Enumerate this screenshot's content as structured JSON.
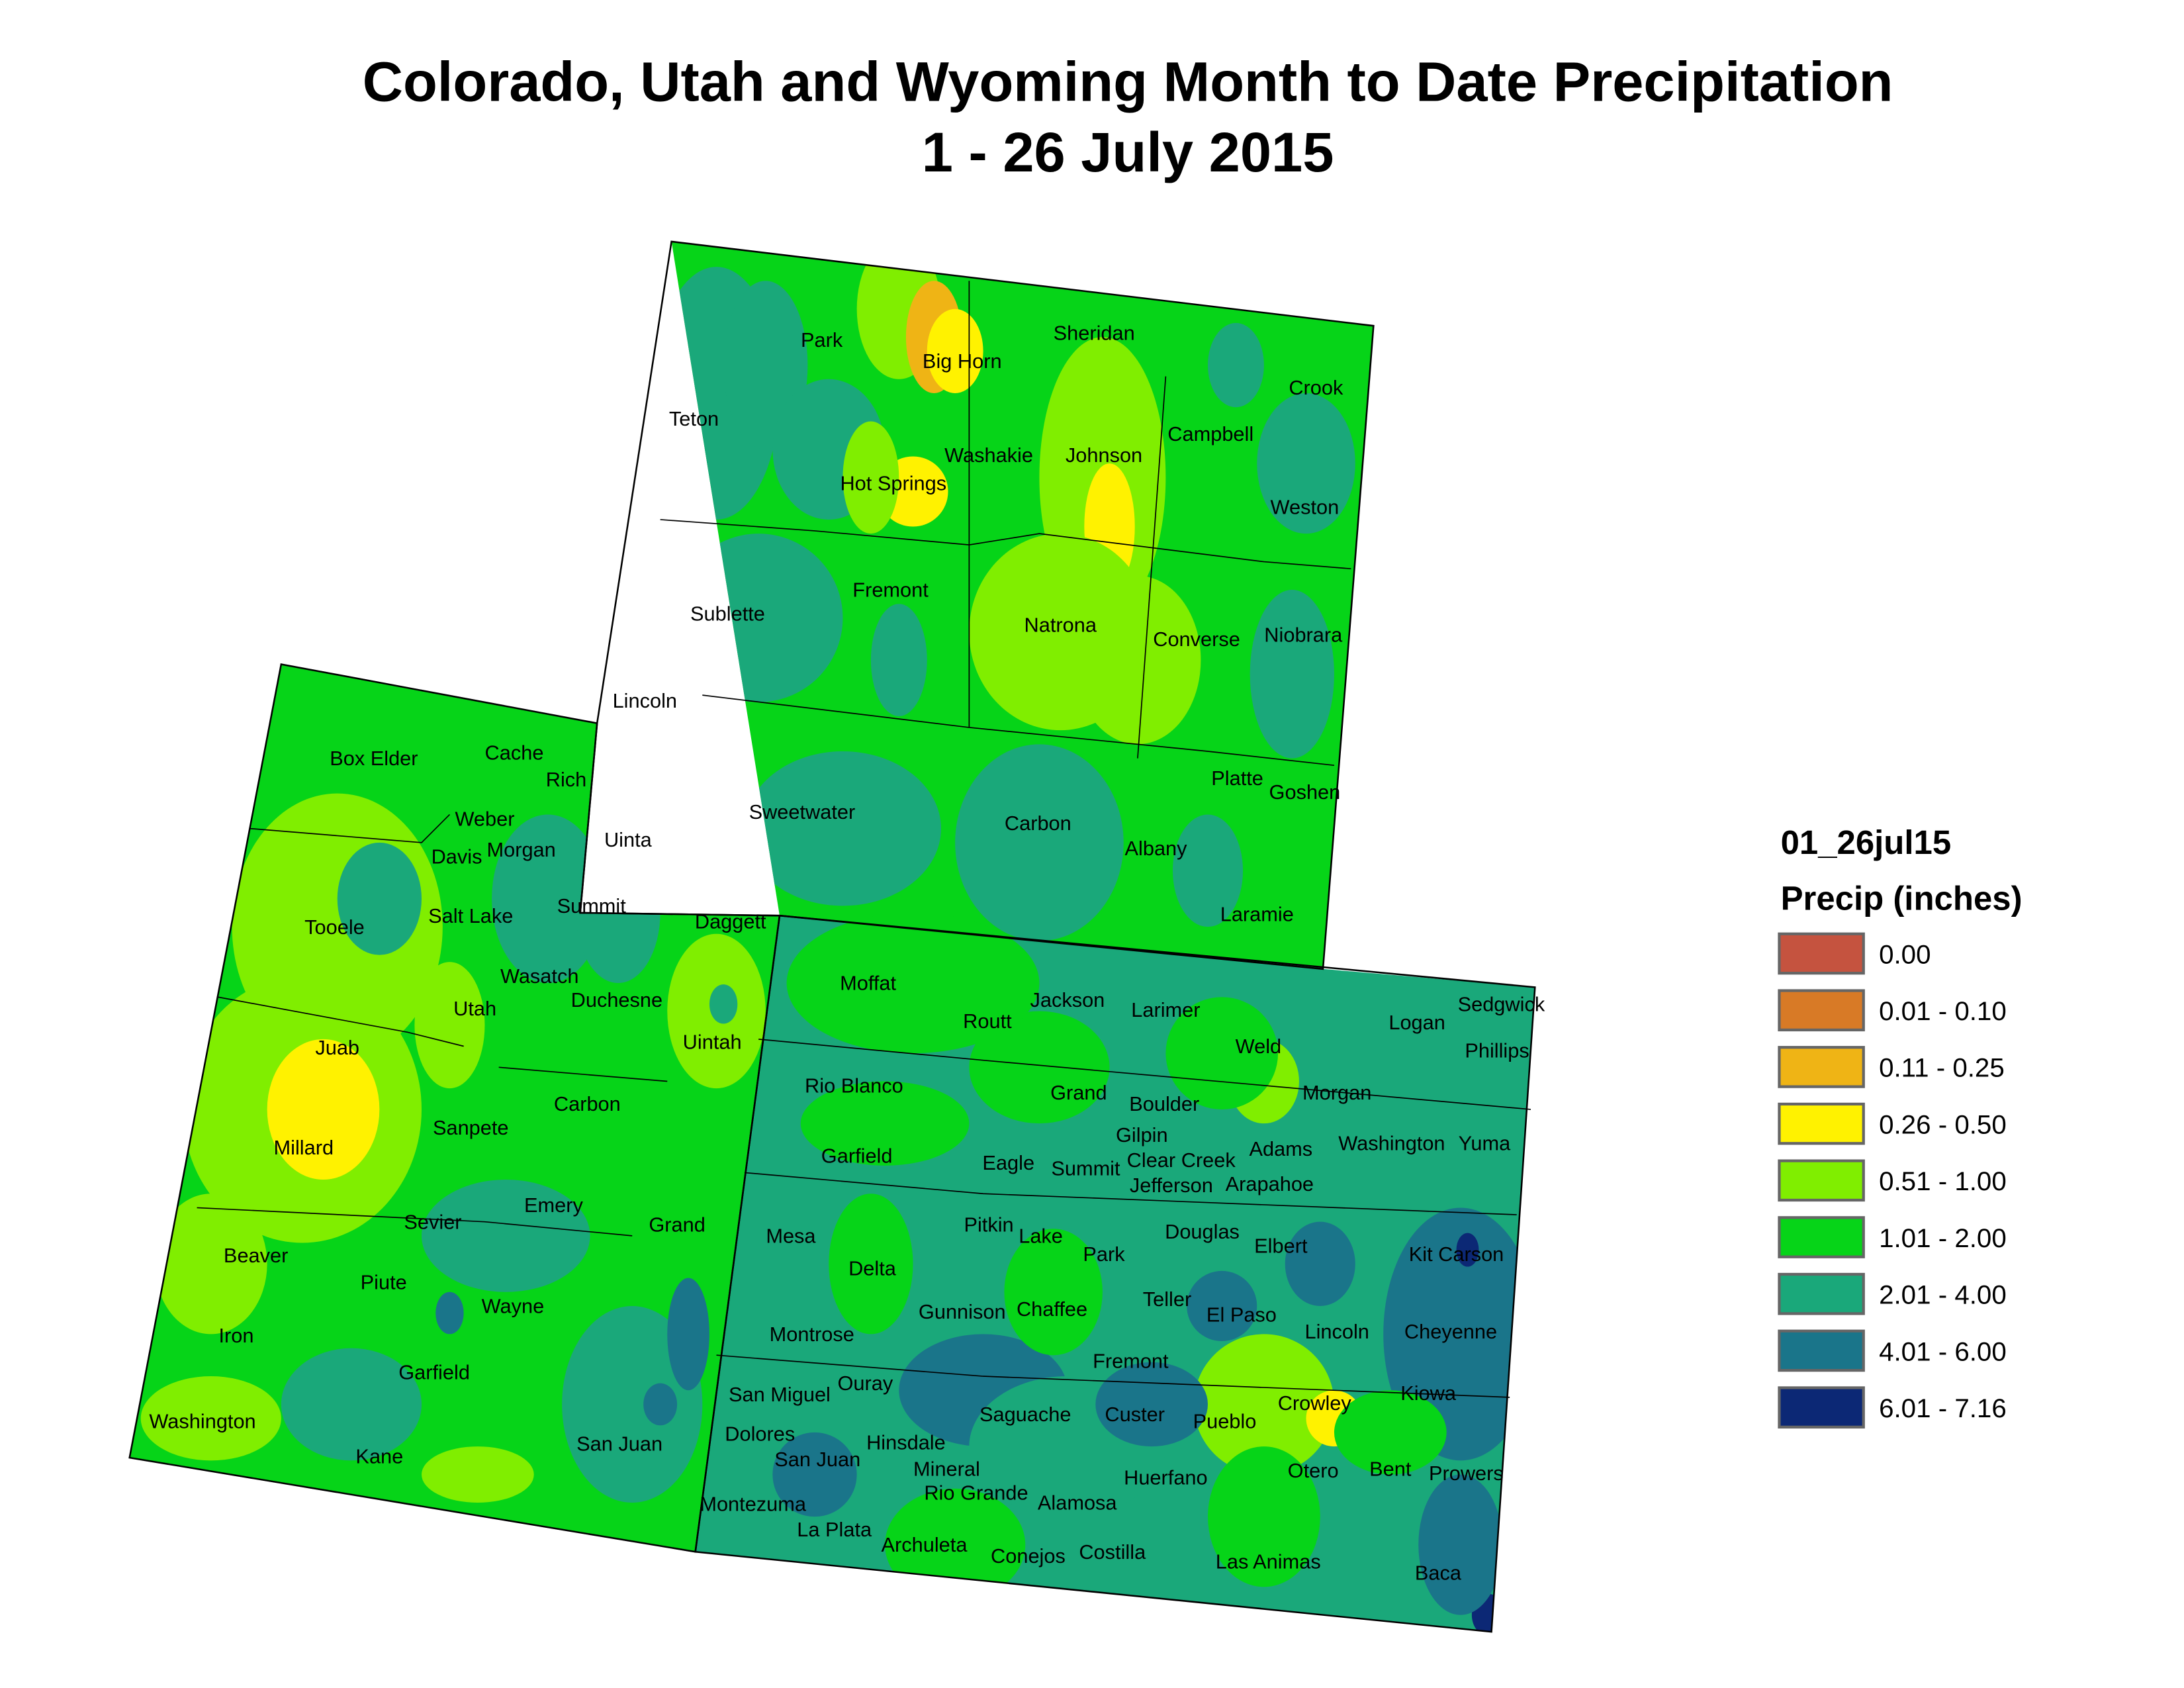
{
  "title": {
    "line1": "Colorado, Utah and Wyoming Month to Date Precipitation",
    "line2": "1 - 26 July 2015"
  },
  "legend": {
    "dataset": "01_26jul15",
    "heading": "Precip (inches)",
    "classes": [
      {
        "label": "0.00",
        "color": "#C5533F"
      },
      {
        "label": "0.01 - 0.10",
        "color": "#D87A26"
      },
      {
        "label": "0.11 - 0.25",
        "color": "#EFB415"
      },
      {
        "label": "0.26 - 0.50",
        "color": "#FFF200"
      },
      {
        "label": "0.51 - 1.00",
        "color": "#80EE00"
      },
      {
        "label": "1.01 - 2.00",
        "color": "#06D418"
      },
      {
        "label": "2.01 - 4.00",
        "color": "#1AA87A"
      },
      {
        "label": "4.01 - 6.00",
        "color": "#1A758A"
      },
      {
        "label": "6.01 - 7.16",
        "color": "#0C2875"
      }
    ]
  },
  "counties": {
    "wyoming": [
      "Park",
      "Big Horn",
      "Sheridan",
      "Crook",
      "Teton",
      "Washakie",
      "Johnson",
      "Campbell",
      "Hot Springs",
      "Weston",
      "Fremont",
      "Sublette",
      "Natrona",
      "Converse",
      "Niobrara",
      "Lincoln",
      "Sweetwater",
      "Carbon",
      "Albany",
      "Platte",
      "Goshen",
      "Uinta",
      "Laramie"
    ],
    "utah": [
      "Box Elder",
      "Cache",
      "Rich",
      "Weber",
      "Davis",
      "Morgan",
      "Tooele",
      "Salt Lake",
      "Summit",
      "Daggett",
      "Wasatch",
      "Duchesne",
      "Utah",
      "Uintah",
      "Juab",
      "Carbon",
      "Sanpete",
      "Millard",
      "Emery",
      "Sevier",
      "Grand",
      "Beaver",
      "Piute",
      "Wayne",
      "Iron",
      "Garfield",
      "Washington",
      "Kane",
      "San Juan"
    ],
    "colorado": [
      "Moffat",
      "Jackson",
      "Larimer",
      "Routt",
      "Logan",
      "Sedgwick",
      "Phillips",
      "Weld",
      "Rio Blanco",
      "Grand",
      "Morgan",
      "Boulder",
      "Gilpin",
      "Garfield",
      "Eagle",
      "Summit",
      "Clear Creek",
      "Adams",
      "Washington",
      "Yuma",
      "Jefferson",
      "Arapahoe",
      "Mesa",
      "Pitkin",
      "Lake",
      "Douglas",
      "Elbert",
      "Park",
      "Kit Carson",
      "Delta",
      "Teller",
      "Chaffee",
      "Gunnison",
      "El Paso",
      "Lincoln",
      "Cheyenne",
      "Montrose",
      "Fremont",
      "Ouray",
      "San Miguel",
      "Kiowa",
      "Crowley",
      "Saguache",
      "Custer",
      "Pueblo",
      "Dolores",
      "Hinsdale",
      "San Juan",
      "Mineral",
      "Otero",
      "Bent",
      "Prowers",
      "Huerfano",
      "Rio Grande",
      "Alamosa",
      "Montezuma",
      "La Plata",
      "Archuleta",
      "Conejos",
      "Costilla",
      "Las Animas",
      "Baca"
    ]
  }
}
